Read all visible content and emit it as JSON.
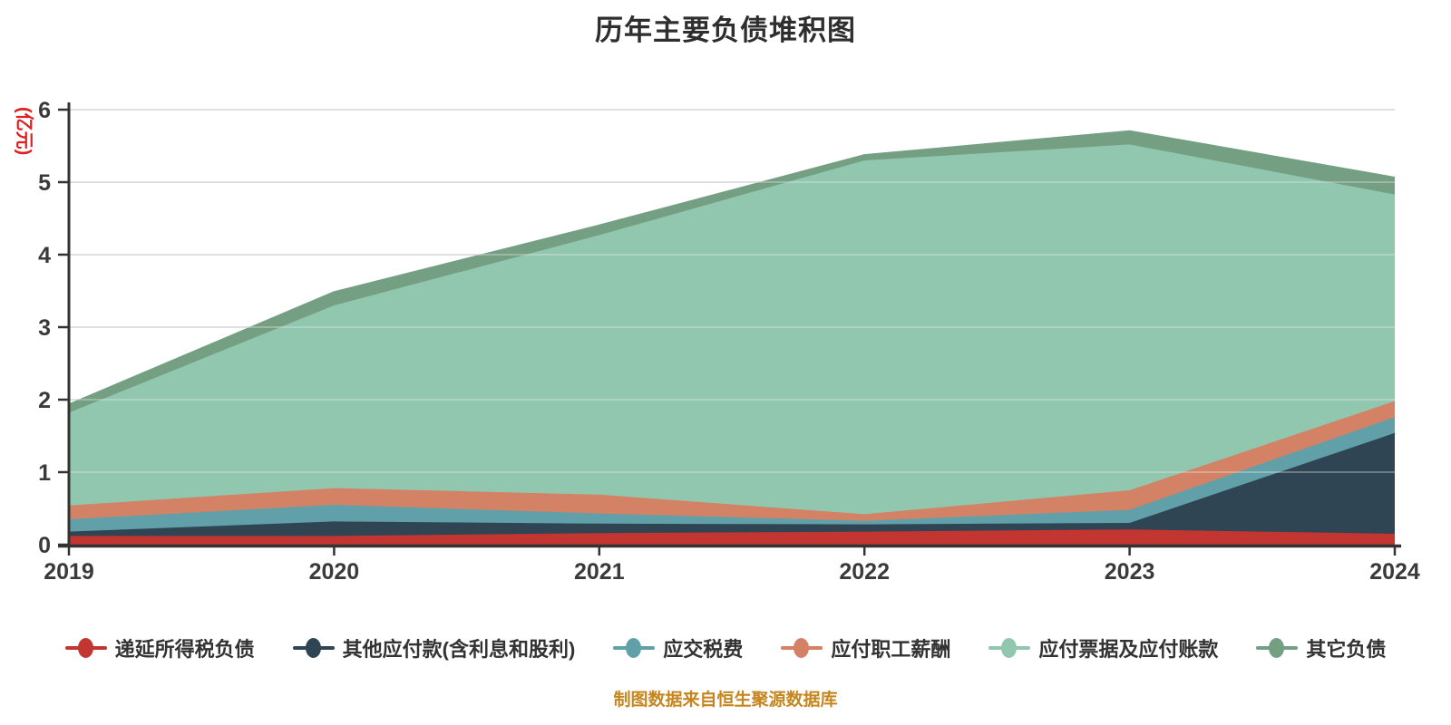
{
  "title": "历年主要负债堆积图",
  "y_axis": {
    "unit": "(亿元)",
    "unit_color": "#e02020",
    "ticks": [
      "0",
      "1",
      "2",
      "3",
      "4",
      "5",
      "6"
    ],
    "max": 6
  },
  "x_axis": {
    "categories": [
      "2019",
      "2020",
      "2021",
      "2022",
      "2023",
      "2024"
    ]
  },
  "footer": {
    "text": "制图数据来自恒生聚源数据库",
    "color": "#c5861f"
  },
  "chart_data": {
    "type": "area",
    "stacked": true,
    "title": "历年主要负债堆积图",
    "ylabel": "(亿元)",
    "xlabel": "",
    "ylim": [
      0,
      6
    ],
    "grid": true,
    "legend_position": "bottom",
    "x": [
      "2019",
      "2020",
      "2021",
      "2022",
      "2023",
      "2024"
    ],
    "series": [
      {
        "name": "递延所得税负债",
        "color": "#c23531",
        "values": [
          0.12,
          0.12,
          0.16,
          0.18,
          0.21,
          0.15
        ]
      },
      {
        "name": "其他应付款(含利息和股利)",
        "color": "#2f4554",
        "values": [
          0.06,
          0.2,
          0.13,
          0.1,
          0.09,
          1.39
        ]
      },
      {
        "name": "应交税费",
        "color": "#61a0a8",
        "values": [
          0.17,
          0.23,
          0.14,
          0.05,
          0.18,
          0.22
        ]
      },
      {
        "name": "应付职工薪酬",
        "color": "#d48265",
        "values": [
          0.19,
          0.23,
          0.26,
          0.09,
          0.27,
          0.22
        ]
      },
      {
        "name": "应付票据及应付账款",
        "color": "#91c7ae",
        "values": [
          1.28,
          2.52,
          3.58,
          4.88,
          4.77,
          2.85
        ]
      },
      {
        "name": "其它负债",
        "color": "#749f83",
        "values": [
          0.11,
          0.18,
          0.13,
          0.07,
          0.18,
          0.23
        ]
      }
    ]
  }
}
